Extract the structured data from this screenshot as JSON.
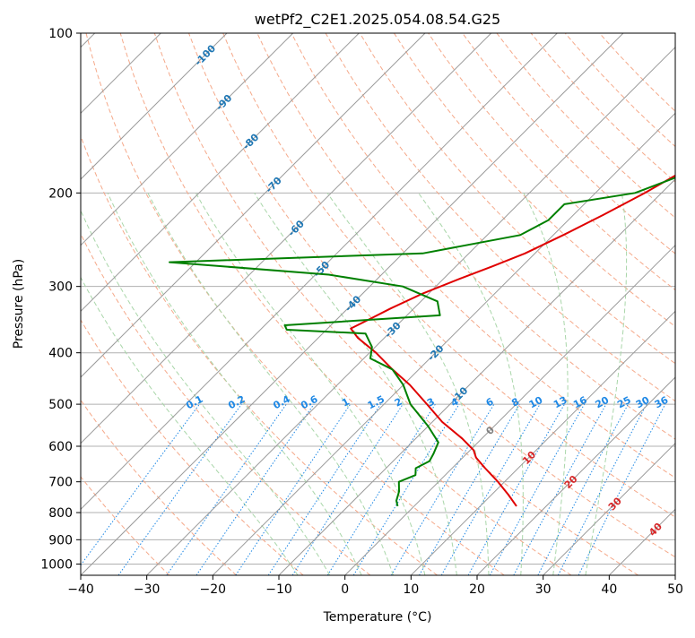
{
  "chart_data": {
    "type": "line",
    "title": "wetPf2_C2E1.2025.054.08.54.G25",
    "xlabel": "Temperature (°C)",
    "ylabel": "Pressure (hPa)",
    "xlim": [
      -40,
      50
    ],
    "ylim": [
      1050,
      100
    ],
    "y_scale": "log",
    "grid": true,
    "x_ticks": [
      -40,
      -30,
      -20,
      -10,
      0,
      10,
      20,
      30,
      40,
      50
    ],
    "y_ticks": [
      100,
      200,
      300,
      400,
      500,
      600,
      700,
      800,
      900,
      1000
    ],
    "series": [
      {
        "color": "#e00000",
        "points": [
          [
            -2.5,
            100
          ],
          [
            -3.5,
            110
          ],
          [
            -4.5,
            120
          ],
          [
            -5.8,
            135
          ],
          [
            -7.0,
            150
          ],
          [
            -9.0,
            170
          ],
          [
            -10.5,
            185
          ],
          [
            -12.5,
            200
          ],
          [
            -15.5,
            220
          ],
          [
            -18.5,
            240
          ],
          [
            -21.5,
            260
          ],
          [
            -24.5,
            275
          ],
          [
            -27.5,
            290
          ],
          [
            -31.0,
            310
          ],
          [
            -33.5,
            330
          ],
          [
            -35.0,
            345
          ],
          [
            -36.5,
            360
          ],
          [
            -34.0,
            375
          ],
          [
            -29.0,
            400
          ],
          [
            -24.0,
            430
          ],
          [
            -19.0,
            460
          ],
          [
            -13.5,
            500
          ],
          [
            -8.5,
            540
          ],
          [
            -3.0,
            580
          ],
          [
            0.5,
            610
          ],
          [
            2.0,
            630
          ],
          [
            5.0,
            660
          ],
          [
            9.0,
            700
          ],
          [
            12.5,
            740
          ],
          [
            15.5,
            778
          ]
        ]
      },
      {
        "color": "#008000",
        "points": [
          [
            -4.5,
            100
          ],
          [
            -7.5,
            110
          ],
          [
            -10.5,
            120
          ],
          [
            -16.5,
            135
          ],
          [
            -16.5,
            150
          ],
          [
            -9.0,
            165
          ],
          [
            -8.0,
            180
          ],
          [
            -14.0,
            200
          ],
          [
            -23.0,
            210
          ],
          [
            -23.0,
            225
          ],
          [
            -25.0,
            240
          ],
          [
            -37.0,
            260
          ],
          [
            -74.0,
            270
          ],
          [
            -48.0,
            285
          ],
          [
            -35.0,
            300
          ],
          [
            -27.5,
            320
          ],
          [
            -25.0,
            340
          ],
          [
            -47.0,
            355
          ],
          [
            -46.0,
            362
          ],
          [
            -33.5,
            368
          ],
          [
            -30.5,
            390
          ],
          [
            -29.0,
            410
          ],
          [
            -24.0,
            430
          ],
          [
            -20.0,
            460
          ],
          [
            -16.0,
            500
          ],
          [
            -10.0,
            550
          ],
          [
            -6.0,
            590
          ],
          [
            -5.0,
            620
          ],
          [
            -4.5,
            640
          ],
          [
            -5.5,
            660
          ],
          [
            -4.5,
            680
          ],
          [
            -6.0,
            700
          ],
          [
            -4.5,
            730
          ],
          [
            -3.5,
            760
          ],
          [
            -2.5,
            778
          ]
        ]
      }
    ],
    "dry_adiabats_C": [
      -30,
      -20,
      -10,
      0,
      10,
      20,
      30,
      40,
      50,
      60,
      70,
      80,
      90,
      100,
      110,
      120,
      130,
      140,
      150,
      160,
      170
    ],
    "moist_adiabats_C": [
      -10,
      -5,
      0,
      5,
      10,
      15,
      20,
      25,
      30,
      35
    ],
    "isotherm_labels": [
      "-100",
      "-90",
      "-80",
      "-70",
      "-60",
      "-50",
      "-40",
      "-30",
      "-20",
      "-10",
      "0",
      "10",
      "20",
      "30",
      "40"
    ],
    "mixing_ratio_labels": [
      "0.1",
      "0.2",
      "0.4",
      "0.6",
      "1",
      "1.5",
      "2",
      "3",
      "4",
      "6",
      "8",
      "10",
      "13",
      "16",
      "20",
      "25",
      "30",
      "36"
    ],
    "mixing_ratio_values": [
      0.1,
      0.2,
      0.4,
      0.6,
      1,
      1.5,
      2,
      3,
      4,
      6,
      8,
      10,
      13,
      16,
      20,
      25,
      30,
      36
    ],
    "colors": {
      "temperature": "#e00000",
      "dewpoint": "#008000",
      "isotherm_label_cold": "#1f77b4",
      "isotherm_label_zero": "#7f7f7f",
      "isotherm_label_warm": "#d62728",
      "mixing_ratio": "#1e88e5",
      "dry_adiabat": "#f5a98a",
      "moist_adiabat": "#a9d6a9",
      "skewed_isotherm": "#9a9a9a",
      "isobar": "#b0b0b0"
    }
  }
}
